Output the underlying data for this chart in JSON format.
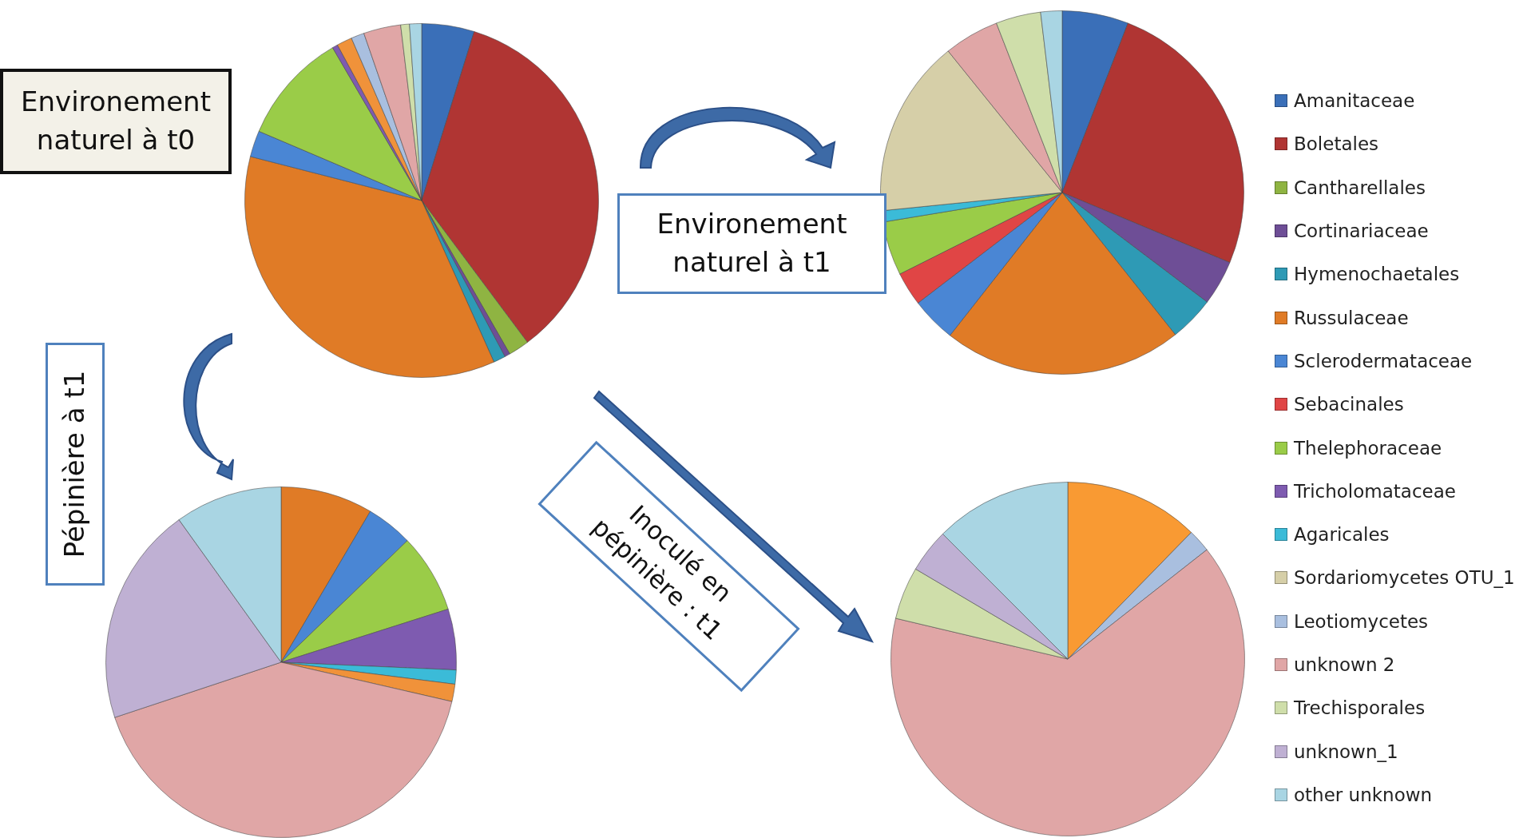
{
  "chart_data": [
    {
      "type": "pie",
      "title": "Environement naturel à t0",
      "categories": [
        null,
        null,
        null,
        null,
        null,
        null,
        null,
        null,
        null,
        null,
        null,
        null,
        null,
        null,
        null,
        null,
        null
      ],
      "values": [
        4.8,
        35,
        1.9,
        0.5,
        1.1,
        35.7,
        2.4,
        0,
        10.2,
        0.5,
        0,
        1.4,
        1.2,
        3.4,
        0.8,
        0,
        1.1
      ],
      "colors": [
        "#3a6fb8",
        "#b03533",
        "#8fb442",
        "#6e4e96",
        "#2e9ab5",
        "#e07b26",
        "#4a86d4",
        "#e04545",
        "#9acc48",
        "#7e5bb0",
        "#3bbbd8",
        "#f0923a",
        "#a9bfdf",
        "#e0a6a6",
        "#cfdeaa",
        "#bfb0d3",
        "#a9d5e3"
      ]
    },
    {
      "type": "pie",
      "title": "Environement naturel à t1",
      "legend": "right",
      "categories": [
        "Amanitaceae",
        "Boletales",
        "Cantharellales",
        "Cortinariaceae",
        "Hymenochaetales",
        "Russulaceae",
        "Sclerodermataceae",
        "Sebacinales",
        "Thelephoraceae",
        "Tricholomataceae",
        "Agaricales",
        "Sordariomycetes OTU_1",
        "Leotiomycetes",
        "unknown 2",
        "Trechisporales",
        "unknown_1",
        "other unknown"
      ],
      "values": [
        5.9,
        25.4,
        0,
        4,
        4,
        21.3,
        4,
        3,
        4.8,
        0,
        1,
        15.8,
        0,
        4.9,
        4,
        0,
        1.9
      ],
      "colors": [
        "#3a6fb8",
        "#b03533",
        "#8fb442",
        "#6e4e96",
        "#2e9ab5",
        "#e07b26",
        "#4a86d4",
        "#e04545",
        "#9acc48",
        "#7e5bb0",
        "#3bbbd8",
        "#d6cfa8",
        "#a9bfdf",
        "#e0a6a6",
        "#cfdeaa",
        "#bfb0d3",
        "#a9d5e3"
      ]
    },
    {
      "type": "pie",
      "title": "Pépinière à t1",
      "categories": [
        null,
        null,
        null,
        null,
        null,
        null,
        null,
        null,
        null,
        null,
        null,
        null,
        null,
        null,
        null,
        null,
        null
      ],
      "values": [
        0,
        0,
        0,
        0,
        0,
        8.5,
        4.3,
        0,
        7.3,
        5.6,
        1.3,
        1.6,
        0,
        41.3,
        0,
        20.2,
        9.9
      ],
      "colors": [
        "#3a6fb8",
        "#b03533",
        "#8fb442",
        "#6e4e96",
        "#2e9ab5",
        "#e07b26",
        "#4a86d4",
        "#e04545",
        "#9acc48",
        "#7e5bb0",
        "#3bbbd8",
        "#f0923a",
        "#a9bfdf",
        "#e0a6a6",
        "#cfdeaa",
        "#bfb0d3",
        "#a9d5e3"
      ]
    },
    {
      "type": "pie",
      "title": "Inoculé en pépinière : t1",
      "categories": [
        null,
        null,
        null,
        null,
        null,
        null,
        null,
        null,
        null,
        null,
        null,
        null,
        null,
        null,
        null,
        null,
        null
      ],
      "values": [
        0,
        0,
        0,
        0,
        0,
        12.3,
        0,
        0,
        0,
        0,
        0,
        0,
        2.1,
        64.3,
        4.8,
        4,
        12.5
      ],
      "colors": [
        "#3a6fb8",
        "#b03533",
        "#8fb442",
        "#6e4e96",
        "#2e9ab5",
        "#f99a33",
        "#4a86d4",
        "#e04545",
        "#9acc48",
        "#7e5bb0",
        "#3bbbd8",
        "#f0923a",
        "#a9bfdf",
        "#e0a6a6",
        "#cfdeaa",
        "#bfb0d3",
        "#a9d5e3"
      ]
    }
  ]
}
